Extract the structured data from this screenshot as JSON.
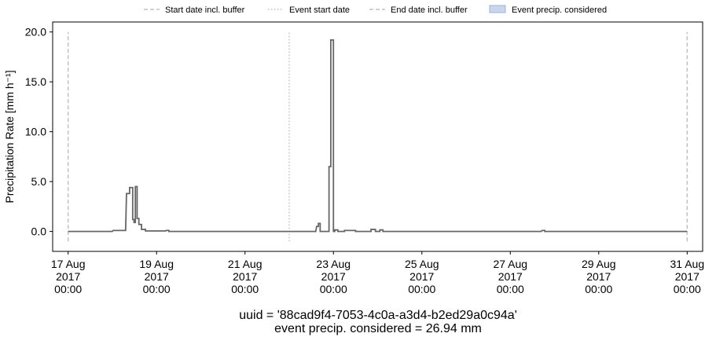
{
  "chart_data": {
    "type": "line",
    "ylabel": "Precipitation Rate [mm h⁻¹]",
    "ylim": [
      -2.0,
      21.0
    ],
    "xlim_days": [
      -0.35,
      14.35
    ],
    "x_start_date": "2017-08-17 00:00",
    "y_ticks": [
      0.0,
      5.0,
      10.0,
      15.0,
      20.0
    ],
    "y_tick_labels": [
      "0.0",
      "5.0",
      "10.0",
      "15.0",
      "20.0"
    ],
    "x_ticks": [
      {
        "day": 0,
        "line1": "17 Aug",
        "line2": "2017",
        "line3": "00:00"
      },
      {
        "day": 2,
        "line1": "19 Aug",
        "line2": "2017",
        "line3": "00:00"
      },
      {
        "day": 4,
        "line1": "21 Aug",
        "line2": "2017",
        "line3": "00:00"
      },
      {
        "day": 6,
        "line1": "23 Aug",
        "line2": "2017",
        "line3": "00:00"
      },
      {
        "day": 8,
        "line1": "25 Aug",
        "line2": "2017",
        "line3": "00:00"
      },
      {
        "day": 10,
        "line1": "27 Aug",
        "line2": "2017",
        "line3": "00:00"
      },
      {
        "day": 12,
        "line1": "29 Aug",
        "line2": "2017",
        "line3": "00:00"
      },
      {
        "day": 14,
        "line1": "31 Aug",
        "line2": "2017",
        "line3": "00:00"
      }
    ],
    "legend": [
      {
        "label": "Start date incl. buffer",
        "style": "dashed"
      },
      {
        "label": "Event start date",
        "style": "dotted"
      },
      {
        "label": "End date incl. buffer",
        "style": "dashed"
      },
      {
        "label": "Event precip. considered",
        "style": "patch"
      }
    ],
    "vlines": [
      {
        "day": 0.0,
        "style": "dashed"
      },
      {
        "day": 5.0,
        "style": "dotted"
      },
      {
        "day": 14.0,
        "style": "dashed"
      }
    ],
    "vline_ymax": 20.0,
    "series": [
      {
        "color": "#666666",
        "step": [
          [
            0.0,
            0.0
          ],
          [
            1.0,
            0.0
          ],
          [
            1.02,
            0.1
          ],
          [
            1.3,
            0.1
          ],
          [
            1.32,
            3.8
          ],
          [
            1.39,
            3.8
          ],
          [
            1.39,
            4.4
          ],
          [
            1.46,
            4.4
          ],
          [
            1.46,
            1.2
          ],
          [
            1.49,
            1.2
          ],
          [
            1.49,
            0.9
          ],
          [
            1.52,
            0.9
          ],
          [
            1.52,
            4.5
          ],
          [
            1.56,
            4.5
          ],
          [
            1.56,
            1.3
          ],
          [
            1.6,
            1.3
          ],
          [
            1.6,
            0.7
          ],
          [
            1.66,
            0.7
          ],
          [
            1.66,
            0.2
          ],
          [
            1.75,
            0.2
          ],
          [
            1.75,
            0.05
          ],
          [
            2.2,
            0.05
          ],
          [
            2.22,
            0.1
          ],
          [
            2.28,
            0.1
          ],
          [
            2.28,
            0.0
          ],
          [
            5.6,
            0.0
          ],
          [
            5.62,
            0.5
          ],
          [
            5.66,
            0.5
          ],
          [
            5.66,
            0.8
          ],
          [
            5.7,
            0.8
          ],
          [
            5.7,
            0.0
          ],
          [
            5.9,
            0.0
          ],
          [
            5.9,
            6.5
          ],
          [
            5.94,
            6.5
          ],
          [
            5.94,
            19.2
          ],
          [
            6.0,
            19.2
          ],
          [
            6.0,
            0.0
          ],
          [
            6.03,
            0.0
          ],
          [
            6.03,
            0.15
          ],
          [
            6.1,
            0.15
          ],
          [
            6.1,
            0.0
          ],
          [
            6.25,
            0.0
          ],
          [
            6.25,
            0.1
          ],
          [
            6.5,
            0.1
          ],
          [
            6.5,
            0.0
          ],
          [
            6.85,
            0.0
          ],
          [
            6.85,
            0.2
          ],
          [
            6.95,
            0.2
          ],
          [
            6.95,
            0.0
          ],
          [
            7.05,
            0.0
          ],
          [
            7.05,
            0.15
          ],
          [
            7.12,
            0.15
          ],
          [
            7.12,
            0.0
          ],
          [
            10.7,
            0.0
          ],
          [
            10.72,
            0.1
          ],
          [
            10.78,
            0.1
          ],
          [
            10.78,
            0.0
          ],
          [
            14.0,
            0.0
          ]
        ]
      }
    ]
  },
  "footer": {
    "uuid_line": "uuid = '88cad9f4-7053-4c0a-a3d4-b2ed29a0c94a'",
    "precip_line": "event precip. considered = 26.94 mm"
  },
  "colors": {
    "line": "#666666",
    "vline": "#c0c0c0",
    "patch_fill": "#c8d6ee",
    "patch_edge": "#9bb3dd"
  }
}
